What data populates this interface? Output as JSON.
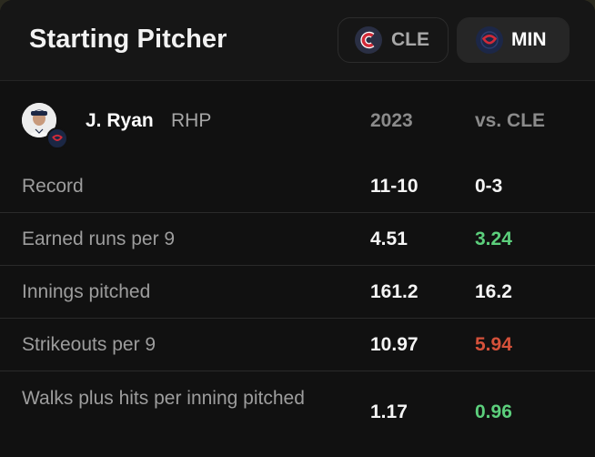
{
  "header": {
    "title": "Starting Pitcher",
    "teams": [
      {
        "abbr": "CLE",
        "logo": "guardians-c-logo",
        "selected": false
      },
      {
        "abbr": "MIN",
        "logo": "twins-logo",
        "selected": true
      }
    ]
  },
  "player": {
    "name": "J. Ryan",
    "position": "RHP",
    "col1_header": "2023",
    "col2_header": "vs. CLE"
  },
  "stats": [
    {
      "label": "Record",
      "season": "11-10",
      "vs": "0-3",
      "vs_status": "neutral"
    },
    {
      "label": "Earned runs per 9",
      "season": "4.51",
      "vs": "3.24",
      "vs_status": "good"
    },
    {
      "label": "Innings pitched",
      "season": "161.2",
      "vs": "16.2",
      "vs_status": "neutral"
    },
    {
      "label": "Strikeouts per 9",
      "season": "10.97",
      "vs": "5.94",
      "vs_status": "bad"
    },
    {
      "label": "Walks plus hits per inning pitched",
      "season": "1.17",
      "vs": "0.96",
      "vs_status": "good"
    }
  ],
  "colors": {
    "good": "#5ccf7c",
    "bad": "#d5513a",
    "cle_navy": "#1b2744",
    "cle_red": "#d12a38"
  }
}
